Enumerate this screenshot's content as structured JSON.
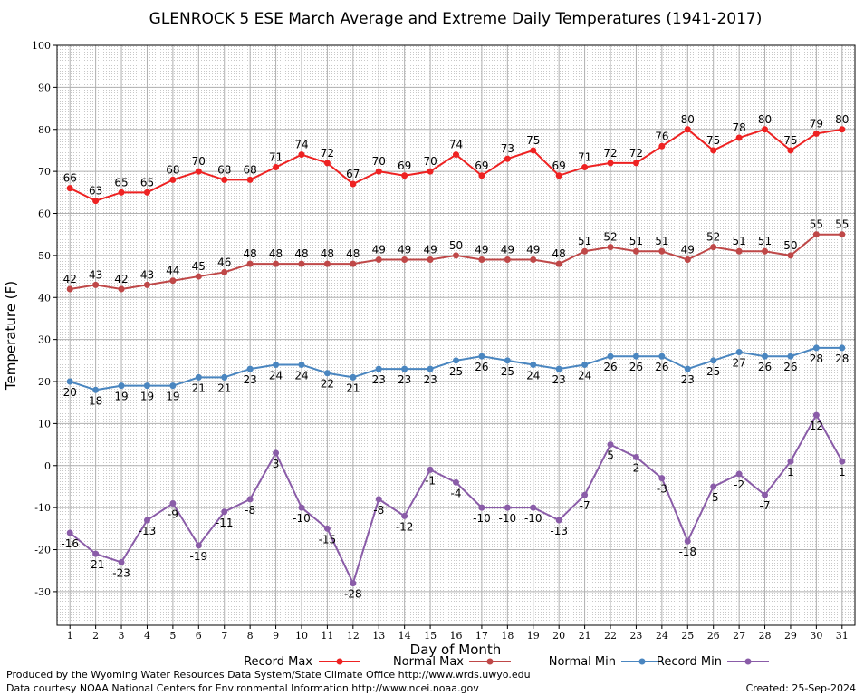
{
  "chart_data": {
    "type": "line",
    "title": "GLENROCK 5 ESE March Average and Extreme Daily Temperatures (1941-2017)",
    "xlabel": "Day of Month",
    "ylabel": "Temperature (F)",
    "x": [
      1,
      2,
      3,
      4,
      5,
      6,
      7,
      8,
      9,
      10,
      11,
      12,
      13,
      14,
      15,
      16,
      17,
      18,
      19,
      20,
      21,
      22,
      23,
      24,
      25,
      26,
      27,
      28,
      29,
      30,
      31
    ],
    "xlim": [
      0.5,
      31.5
    ],
    "ylim": [
      -38,
      100
    ],
    "yticks": [
      -30,
      -20,
      -10,
      0,
      10,
      20,
      30,
      40,
      50,
      60,
      70,
      80,
      90,
      100
    ],
    "grid": true,
    "legend_position": "bottom",
    "series": [
      {
        "name": "Record Max",
        "color": "#ee2222",
        "label_position": "above",
        "values": [
          66,
          63,
          65,
          65,
          68,
          70,
          68,
          68,
          71,
          74,
          72,
          67,
          70,
          69,
          70,
          74,
          69,
          73,
          75,
          69,
          71,
          72,
          72,
          76,
          80,
          75,
          78,
          80,
          75,
          79,
          80
        ]
      },
      {
        "name": "Normal Max",
        "color": "#bf4848",
        "label_position": "above",
        "values": [
          42,
          43,
          42,
          43,
          44,
          45,
          46,
          48,
          48,
          48,
          48,
          48,
          49,
          49,
          49,
          50,
          49,
          49,
          49,
          48,
          51,
          52,
          51,
          51,
          49,
          52,
          51,
          51,
          50,
          55,
          55
        ]
      },
      {
        "name": "Normal Min",
        "color": "#4a86c0",
        "label_position": "below",
        "values": [
          20,
          18,
          19,
          19,
          19,
          21,
          21,
          23,
          24,
          24,
          22,
          21,
          23,
          23,
          23,
          25,
          26,
          25,
          24,
          23,
          24,
          26,
          26,
          26,
          23,
          25,
          27,
          26,
          26,
          28,
          28
        ]
      },
      {
        "name": "Record Min",
        "color": "#8a5ca8",
        "label_position": "below",
        "values": [
          -16,
          -21,
          -23,
          -13,
          -9,
          -19,
          -11,
          -8,
          3,
          -10,
          -15,
          -28,
          -8,
          -12,
          -1,
          -4,
          -10,
          -10,
          -10,
          -13,
          -7,
          5,
          2,
          -3,
          -18,
          -5,
          -2,
          -7,
          1,
          12,
          1
        ]
      }
    ]
  },
  "footer": {
    "line1": "Produced by the Wyoming Water Resources Data System/State Climate Office http://www.wrds.uwyo.edu",
    "line2": "Data courtesy NOAA National Centers for Environmental Information http://www.ncei.noaa.gov",
    "created": "Created:  25-Sep-2024"
  }
}
